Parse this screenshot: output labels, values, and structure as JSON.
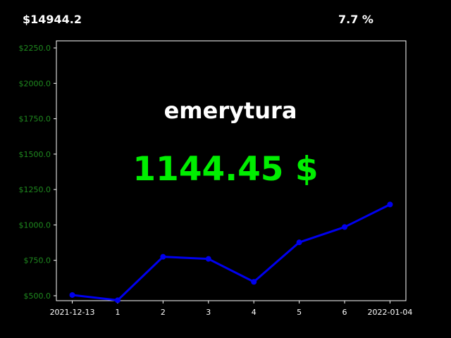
{
  "header": {
    "total_value": "$14944.2",
    "percent_change": "7.7 %"
  },
  "overlay": {
    "title": "emerytura",
    "value": "1144.45 $"
  },
  "colors": {
    "background": "#000000",
    "line": "#0000ee",
    "ytick_text": "#1f8a1f",
    "value_text": "#00ee00",
    "title_text": "#ffffff",
    "axes_frame": "#ffffff"
  },
  "chart_data": {
    "type": "line",
    "title": "",
    "xlabel": "",
    "ylabel": "",
    "x_tick_labels": [
      "2021-12-13",
      "1",
      "2",
      "3",
      "4",
      "5",
      "6",
      "2022-01-04"
    ],
    "y_tick_labels": [
      "$500.0",
      "$750.0",
      "$1000.0",
      "$1250.0",
      "$1500.0",
      "$1750.0",
      "$2000.0",
      "$2250.0"
    ],
    "y_ticks": [
      500,
      750,
      1000,
      1250,
      1500,
      1750,
      2000,
      2250
    ],
    "ylim": [
      465,
      2300
    ],
    "xlim": [
      -0.35,
      7.35
    ],
    "grid": false,
    "series": [
      {
        "x": [
          0,
          1,
          2,
          3,
          4,
          5,
          6,
          7
        ],
        "values": [
          505,
          468,
          775,
          760,
          598,
          877,
          985,
          1144.45
        ]
      }
    ]
  }
}
